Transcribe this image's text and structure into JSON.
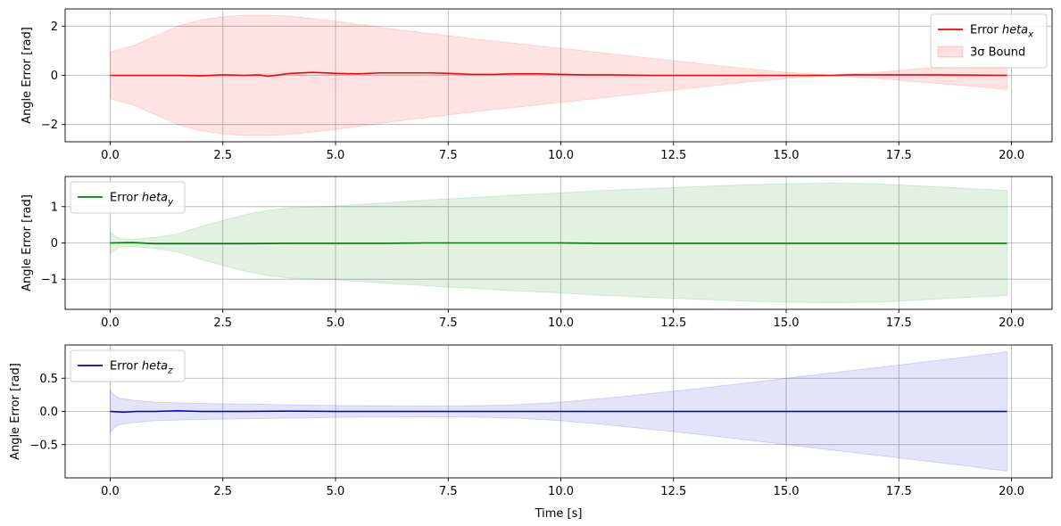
{
  "chart_data": [
    {
      "type": "line",
      "xlabel": "",
      "ylabel": "Angle Error [rad]",
      "xlim": [
        -1.0,
        20.9
      ],
      "ylim": [
        -2.7,
        2.7
      ],
      "xticks": [
        0.0,
        2.5,
        5.0,
        7.5,
        10.0,
        12.5,
        15.0,
        17.5,
        20.0
      ],
      "xtick_labels": [
        "0.0",
        "2.5",
        "5.0",
        "7.5",
        "10.0",
        "12.5",
        "15.0",
        "17.5",
        "20.0"
      ],
      "yticks": [
        -2,
        0,
        2
      ],
      "ytick_labels": [
        "−2",
        "0",
        "2"
      ],
      "grid": true,
      "legend_position": "top-right",
      "legend_entries": [
        {
          "name": "Error $\theta_x$",
          "base": "Error ",
          "math": "heta",
          "sub": "x",
          "kind": "line"
        },
        {
          "name": "3σ Bound",
          "base": "",
          "math": "3σ Bound",
          "sub": "",
          "kind": "band"
        }
      ],
      "color": "#ff0000",
      "band_color": "#ffc8c8",
      "x": [
        0,
        0.5,
        1,
        1.5,
        2,
        2.5,
        3,
        3.3,
        3.5,
        4,
        4.5,
        5,
        5.5,
        6,
        6.5,
        7,
        7.5,
        8,
        8.5,
        9,
        9.5,
        10,
        10.5,
        11,
        12,
        13,
        14,
        15,
        16,
        16.5,
        17,
        18,
        19,
        19.9
      ],
      "y": [
        0.0,
        0.0,
        0.0,
        0.0,
        -0.02,
        0.02,
        0.0,
        0.02,
        -0.04,
        0.08,
        0.12,
        0.08,
        0.06,
        0.1,
        0.1,
        0.1,
        0.08,
        0.04,
        0.04,
        0.06,
        0.06,
        0.04,
        0.02,
        0.02,
        0.0,
        0.0,
        0.0,
        0.0,
        0.0,
        0.02,
        0.02,
        0.02,
        0.01,
        0.0
      ],
      "band_x": [
        0,
        0.5,
        1,
        1.5,
        2,
        2.5,
        3,
        3.5,
        4,
        5,
        6,
        7,
        8,
        9,
        10,
        11,
        12,
        13,
        14,
        15,
        16,
        17,
        18,
        19,
        19.9
      ],
      "band_upper": [
        0.95,
        1.2,
        1.6,
        2.0,
        2.25,
        2.38,
        2.45,
        2.45,
        2.4,
        2.2,
        1.95,
        1.72,
        1.5,
        1.3,
        1.1,
        0.9,
        0.7,
        0.5,
        0.3,
        0.12,
        0.02,
        0.12,
        0.28,
        0.42,
        0.58
      ],
      "band_lower": [
        -0.95,
        -1.2,
        -1.6,
        -2.0,
        -2.25,
        -2.38,
        -2.45,
        -2.45,
        -2.4,
        -2.2,
        -1.95,
        -1.72,
        -1.5,
        -1.3,
        -1.1,
        -0.9,
        -0.7,
        -0.5,
        -0.3,
        -0.12,
        -0.02,
        -0.12,
        -0.28,
        -0.42,
        -0.58
      ]
    },
    {
      "type": "line",
      "xlabel": "",
      "ylabel": "Angle Error [rad]",
      "xlim": [
        -1.0,
        20.9
      ],
      "ylim": [
        -1.83,
        1.83
      ],
      "xticks": [
        0.0,
        2.5,
        5.0,
        7.5,
        10.0,
        12.5,
        15.0,
        17.5,
        20.0
      ],
      "xtick_labels": [
        "0.0",
        "2.5",
        "5.0",
        "7.5",
        "10.0",
        "12.5",
        "15.0",
        "17.5",
        "20.0"
      ],
      "yticks": [
        -1,
        0,
        1
      ],
      "ytick_labels": [
        "−1",
        "0",
        "1"
      ],
      "grid": true,
      "legend_position": "top-left",
      "legend_entries": [
        {
          "name": "Error $\theta_y$",
          "base": "Error ",
          "math": "heta",
          "sub": "y",
          "kind": "line"
        }
      ],
      "color": "#008000",
      "band_color": "#d6ebd6",
      "x": [
        0,
        0.5,
        1,
        1.5,
        2,
        3,
        4,
        5,
        6,
        7,
        8,
        9,
        10,
        11,
        12,
        13,
        14,
        15,
        16,
        17,
        18,
        19,
        19.9
      ],
      "y": [
        0.0,
        0.01,
        -0.02,
        -0.02,
        -0.02,
        -0.02,
        -0.01,
        -0.01,
        -0.01,
        0.0,
        0.0,
        0.0,
        0.0,
        -0.01,
        -0.01,
        -0.01,
        -0.01,
        -0.01,
        -0.01,
        -0.01,
        -0.01,
        -0.01,
        -0.01
      ],
      "band_x": [
        0,
        0.05,
        0.2,
        0.5,
        1,
        1.5,
        2,
        2.5,
        3,
        3.5,
        4,
        5,
        6,
        7,
        8,
        9,
        10,
        11,
        12,
        13,
        14,
        15,
        16,
        17,
        18,
        19,
        19.9
      ],
      "band_upper": [
        0.3,
        0.25,
        0.12,
        0.1,
        0.15,
        0.25,
        0.45,
        0.62,
        0.78,
        0.9,
        0.97,
        1.02,
        1.1,
        1.18,
        1.25,
        1.32,
        1.38,
        1.45,
        1.5,
        1.55,
        1.6,
        1.63,
        1.65,
        1.63,
        1.57,
        1.5,
        1.45
      ],
      "band_lower": [
        -0.3,
        -0.25,
        -0.12,
        -0.1,
        -0.15,
        -0.25,
        -0.45,
        -0.62,
        -0.78,
        -0.9,
        -0.97,
        -1.02,
        -1.1,
        -1.18,
        -1.25,
        -1.32,
        -1.38,
        -1.45,
        -1.5,
        -1.55,
        -1.6,
        -1.63,
        -1.65,
        -1.63,
        -1.57,
        -1.5,
        -1.45
      ]
    },
    {
      "type": "line",
      "xlabel": "Time [s]",
      "ylabel": "Angle Error [rad]",
      "xlim": [
        -1.0,
        20.9
      ],
      "ylim": [
        -1.0,
        1.0
      ],
      "xticks": [
        0.0,
        2.5,
        5.0,
        7.5,
        10.0,
        12.5,
        15.0,
        17.5,
        20.0
      ],
      "xtick_labels": [
        "0.0",
        "2.5",
        "5.0",
        "7.5",
        "10.0",
        "12.5",
        "15.0",
        "17.5",
        "20.0"
      ],
      "yticks": [
        -0.5,
        0.0,
        0.5
      ],
      "ytick_labels": [
        "−0.5",
        "0.0",
        "0.5"
      ],
      "grid": true,
      "legend_position": "top-left",
      "legend_entries": [
        {
          "name": "Error $\theta_z$",
          "base": "Error ",
          "math": "heta",
          "sub": "z",
          "kind": "line"
        }
      ],
      "color": "#0000cc",
      "band_color": "#dcdcff",
      "x": [
        0,
        0.3,
        0.6,
        1,
        1.5,
        2,
        3,
        4,
        5,
        6,
        7,
        8,
        9,
        10,
        11,
        12,
        13,
        14,
        15,
        16,
        17,
        18,
        19,
        19.9
      ],
      "y": [
        0.0,
        -0.01,
        0.0,
        0.0,
        0.01,
        0.0,
        0.0,
        0.005,
        0.0,
        0.0,
        0.0,
        0.0,
        0.0,
        0.0,
        0.0,
        0.0,
        0.0,
        0.0,
        0.0,
        0.0,
        0.0,
        0.0,
        0.0,
        0.0
      ],
      "band_x": [
        0,
        0.05,
        0.2,
        0.5,
        1,
        2,
        3,
        4,
        5,
        6,
        7,
        8,
        9,
        10,
        11,
        12,
        13,
        14,
        15,
        16,
        17,
        18,
        19,
        19.9
      ],
      "band_upper": [
        0.32,
        0.27,
        0.2,
        0.17,
        0.14,
        0.12,
        0.11,
        0.1,
        0.09,
        0.085,
        0.08,
        0.085,
        0.1,
        0.14,
        0.2,
        0.27,
        0.34,
        0.42,
        0.5,
        0.58,
        0.66,
        0.74,
        0.82,
        0.9
      ],
      "band_lower": [
        -0.32,
        -0.27,
        -0.2,
        -0.17,
        -0.14,
        -0.12,
        -0.11,
        -0.1,
        -0.09,
        -0.085,
        -0.08,
        -0.085,
        -0.1,
        -0.14,
        -0.2,
        -0.27,
        -0.34,
        -0.42,
        -0.5,
        -0.58,
        -0.66,
        -0.74,
        -0.82,
        -0.9
      ]
    }
  ]
}
